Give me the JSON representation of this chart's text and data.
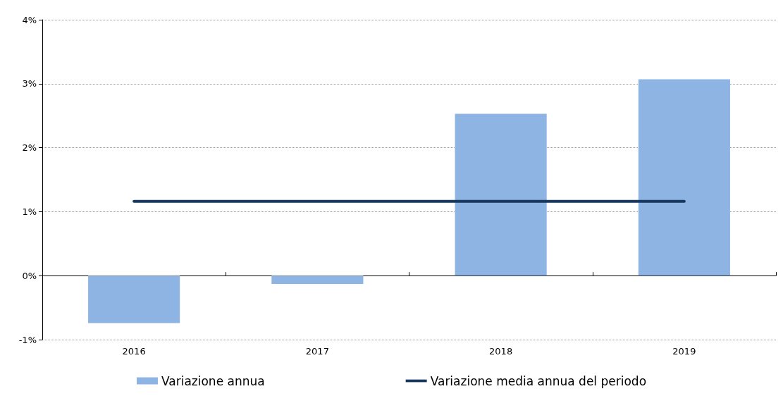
{
  "chart_data": {
    "type": "bar",
    "categories": [
      "2016",
      "2017",
      "2018",
      "2019"
    ],
    "series": [
      {
        "name": "Variazione annua",
        "color": "#8eb4e3",
        "values": [
          -0.74,
          -0.13,
          2.53,
          3.07
        ]
      },
      {
        "name": "Variazione media annua del periodo",
        "type": "line",
        "color": "#17375e",
        "values": [
          1.16,
          1.16,
          1.16,
          1.16
        ]
      }
    ],
    "ylim": [
      -1,
      4
    ],
    "yticks": [
      {
        "value": -1,
        "label": "-1%"
      },
      {
        "value": 0,
        "label": "0%"
      },
      {
        "value": 1,
        "label": "1%"
      },
      {
        "value": 2,
        "label": "2%"
      },
      {
        "value": 3,
        "label": "3%"
      },
      {
        "value": 4,
        "label": "4%"
      }
    ],
    "grid": "y",
    "legend": "bottom",
    "marker": "none"
  }
}
